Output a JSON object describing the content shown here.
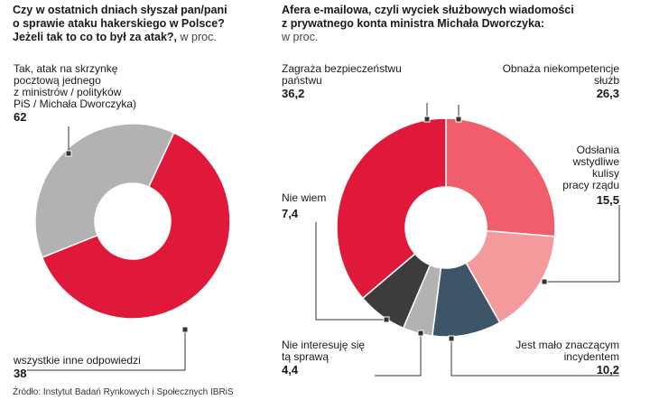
{
  "chart_data": [
    {
      "type": "pie",
      "title": "Czy w ostatnich dniach słyszał pan/pani o sprawie ataku hakerskiego w Polsce? Jeżeli tak to co to był za atak?,",
      "title_lines": [
        "Czy w ostatnich dniach słyszał pan/pani",
        "o sprawie ataku hakerskiego w Polsce?",
        "Jeżeli tak to co to był za atak?,"
      ],
      "unit": "w proc.",
      "slices": [
        {
          "label_lines": [
            "Tak, atak na skrzynkę",
            "pocztową jednego",
            "z ministrów / polityków",
            "PiS / Michała Dworczyka)"
          ],
          "value": 62,
          "value_text": "62",
          "color": "#e0193a"
        },
        {
          "label_lines": [
            "wszystkie inne odpowiedzi"
          ],
          "value": 38,
          "value_text": "38",
          "color": "#b3b1b1"
        }
      ]
    },
    {
      "type": "pie",
      "title": "Afera e-mailowa, czyli wyciek służbowych wiadomości z prywatnego konta ministra Michała Dworczyka:",
      "title_lines": [
        "Afera e-mailowa, czyli wyciek służbowych wiadomości",
        "z prywatnego konta ministra Michała Dworczyka:"
      ],
      "unit": "w proc.",
      "slices": [
        {
          "label_lines": [
            "Obnaża niekompetencje",
            "służb"
          ],
          "value": 26.3,
          "value_text": "26,3",
          "color": "#ef5e6a"
        },
        {
          "label_lines": [
            "Odsłania",
            "wstydliwe",
            "kulisy",
            "pracy rządu"
          ],
          "value": 15.5,
          "value_text": "15,5",
          "color": "#f39a9d"
        },
        {
          "label_lines": [
            "Jest mało znaczącym",
            "incydentem"
          ],
          "value": 10.2,
          "value_text": "10,2",
          "color": "#3e5467"
        },
        {
          "label_lines": [
            "Nie interesuję się",
            "tą sprawą"
          ],
          "value": 4.4,
          "value_text": "4,4",
          "color": "#b3b1b1"
        },
        {
          "label_lines": [
            "Nie wiem"
          ],
          "value": 7.4,
          "value_text": "7,4",
          "color": "#3d3b3b"
        },
        {
          "label_lines": [
            "Zagraża bezpieczeństwu",
            "państwu"
          ],
          "value": 36.2,
          "value_text": "36,2",
          "color": "#e0193a"
        }
      ]
    }
  ],
  "source": "Źródło: Instytut Badań Rynkowych i Społecznych IBRiS"
}
